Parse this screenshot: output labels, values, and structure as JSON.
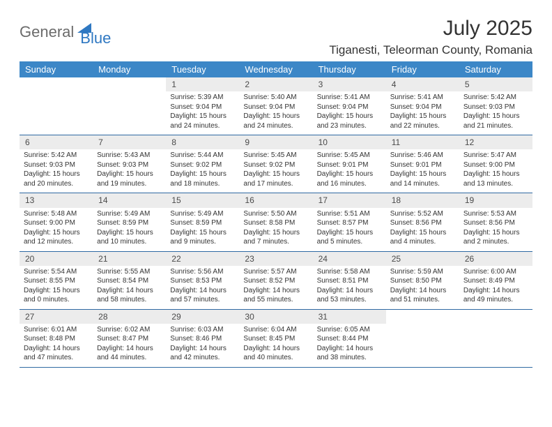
{
  "logo": {
    "part1": "General",
    "part2": "Blue"
  },
  "title": "July 2025",
  "location": "Tiganesti, Teleorman County, Romania",
  "colors": {
    "header_bg": "#3c87c7",
    "header_text": "#ffffff",
    "daynum_bg": "#ececec",
    "border": "#2f6aa3",
    "logo_gray": "#6b6b6b",
    "logo_blue": "#2f78c2"
  },
  "day_headers": [
    "Sunday",
    "Monday",
    "Tuesday",
    "Wednesday",
    "Thursday",
    "Friday",
    "Saturday"
  ],
  "weeks": [
    {
      "nums": [
        "",
        "",
        "1",
        "2",
        "3",
        "4",
        "5"
      ],
      "cells": [
        null,
        null,
        {
          "sr": "5:39 AM",
          "ss": "9:04 PM",
          "dl": "15 hours and 24 minutes."
        },
        {
          "sr": "5:40 AM",
          "ss": "9:04 PM",
          "dl": "15 hours and 24 minutes."
        },
        {
          "sr": "5:41 AM",
          "ss": "9:04 PM",
          "dl": "15 hours and 23 minutes."
        },
        {
          "sr": "5:41 AM",
          "ss": "9:04 PM",
          "dl": "15 hours and 22 minutes."
        },
        {
          "sr": "5:42 AM",
          "ss": "9:03 PM",
          "dl": "15 hours and 21 minutes."
        }
      ]
    },
    {
      "nums": [
        "6",
        "7",
        "8",
        "9",
        "10",
        "11",
        "12"
      ],
      "cells": [
        {
          "sr": "5:42 AM",
          "ss": "9:03 PM",
          "dl": "15 hours and 20 minutes."
        },
        {
          "sr": "5:43 AM",
          "ss": "9:03 PM",
          "dl": "15 hours and 19 minutes."
        },
        {
          "sr": "5:44 AM",
          "ss": "9:02 PM",
          "dl": "15 hours and 18 minutes."
        },
        {
          "sr": "5:45 AM",
          "ss": "9:02 PM",
          "dl": "15 hours and 17 minutes."
        },
        {
          "sr": "5:45 AM",
          "ss": "9:01 PM",
          "dl": "15 hours and 16 minutes."
        },
        {
          "sr": "5:46 AM",
          "ss": "9:01 PM",
          "dl": "15 hours and 14 minutes."
        },
        {
          "sr": "5:47 AM",
          "ss": "9:00 PM",
          "dl": "15 hours and 13 minutes."
        }
      ]
    },
    {
      "nums": [
        "13",
        "14",
        "15",
        "16",
        "17",
        "18",
        "19"
      ],
      "cells": [
        {
          "sr": "5:48 AM",
          "ss": "9:00 PM",
          "dl": "15 hours and 12 minutes."
        },
        {
          "sr": "5:49 AM",
          "ss": "8:59 PM",
          "dl": "15 hours and 10 minutes."
        },
        {
          "sr": "5:49 AM",
          "ss": "8:59 PM",
          "dl": "15 hours and 9 minutes."
        },
        {
          "sr": "5:50 AM",
          "ss": "8:58 PM",
          "dl": "15 hours and 7 minutes."
        },
        {
          "sr": "5:51 AM",
          "ss": "8:57 PM",
          "dl": "15 hours and 5 minutes."
        },
        {
          "sr": "5:52 AM",
          "ss": "8:56 PM",
          "dl": "15 hours and 4 minutes."
        },
        {
          "sr": "5:53 AM",
          "ss": "8:56 PM",
          "dl": "15 hours and 2 minutes."
        }
      ]
    },
    {
      "nums": [
        "20",
        "21",
        "22",
        "23",
        "24",
        "25",
        "26"
      ],
      "cells": [
        {
          "sr": "5:54 AM",
          "ss": "8:55 PM",
          "dl": "15 hours and 0 minutes."
        },
        {
          "sr": "5:55 AM",
          "ss": "8:54 PM",
          "dl": "14 hours and 58 minutes."
        },
        {
          "sr": "5:56 AM",
          "ss": "8:53 PM",
          "dl": "14 hours and 57 minutes."
        },
        {
          "sr": "5:57 AM",
          "ss": "8:52 PM",
          "dl": "14 hours and 55 minutes."
        },
        {
          "sr": "5:58 AM",
          "ss": "8:51 PM",
          "dl": "14 hours and 53 minutes."
        },
        {
          "sr": "5:59 AM",
          "ss": "8:50 PM",
          "dl": "14 hours and 51 minutes."
        },
        {
          "sr": "6:00 AM",
          "ss": "8:49 PM",
          "dl": "14 hours and 49 minutes."
        }
      ]
    },
    {
      "nums": [
        "27",
        "28",
        "29",
        "30",
        "31",
        "",
        ""
      ],
      "cells": [
        {
          "sr": "6:01 AM",
          "ss": "8:48 PM",
          "dl": "14 hours and 47 minutes."
        },
        {
          "sr": "6:02 AM",
          "ss": "8:47 PM",
          "dl": "14 hours and 44 minutes."
        },
        {
          "sr": "6:03 AM",
          "ss": "8:46 PM",
          "dl": "14 hours and 42 minutes."
        },
        {
          "sr": "6:04 AM",
          "ss": "8:45 PM",
          "dl": "14 hours and 40 minutes."
        },
        {
          "sr": "6:05 AM",
          "ss": "8:44 PM",
          "dl": "14 hours and 38 minutes."
        },
        null,
        null
      ]
    }
  ],
  "labels": {
    "sunrise": "Sunrise: ",
    "sunset": "Sunset: ",
    "daylight": "Daylight: "
  }
}
